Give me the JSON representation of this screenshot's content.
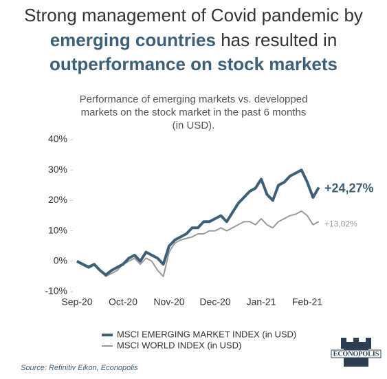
{
  "chart_data": {
    "type": "line",
    "title": [
      "Strong management of Covid pandemic by",
      "emerging countries",
      " has resulted in",
      "outperformance on stock markets"
    ],
    "subtitle": [
      "Performance of emerging markets vs. developped",
      "markets on the stock market in the past 6 months",
      "(in USD)."
    ],
    "categories": [
      "Sep-20",
      null,
      null,
      null,
      null,
      null,
      null,
      null,
      "Oct-20",
      null,
      null,
      null,
      null,
      null,
      null,
      null,
      "Nov-20",
      null,
      null,
      null,
      null,
      null,
      null,
      null,
      "Dec-20",
      null,
      null,
      null,
      null,
      null,
      null,
      null,
      "Jan-21",
      null,
      null,
      null,
      null,
      null,
      null,
      null,
      "Feb-21",
      null,
      null
    ],
    "series": [
      {
        "name": "MSCI EMERGING MARKET INDEX (in USD)",
        "color": "#3d6078",
        "values": [
          0,
          -1,
          -2,
          -1,
          -3,
          -4.5,
          -3,
          -2,
          -1,
          1,
          2,
          0,
          3,
          2,
          1,
          -1,
          5,
          7,
          8,
          9,
          11,
          11,
          13,
          13,
          14,
          15,
          13,
          16,
          19,
          21,
          23,
          24,
          27,
          22,
          20,
          25,
          26,
          28,
          29,
          30,
          26,
          21,
          24.27
        ],
        "value_labels": [
          null,
          null,
          null,
          null,
          null,
          null,
          null,
          null,
          null,
          null,
          null,
          null,
          null,
          null,
          null,
          null,
          null,
          null,
          null,
          null,
          null,
          null,
          null,
          null,
          null,
          null,
          null,
          null,
          null,
          null,
          null,
          null,
          null,
          null,
          null,
          null,
          null,
          null,
          null,
          null,
          null,
          null,
          "+24,27%"
        ]
      },
      {
        "name": "MSCI WORLD INDEX (in USD)",
        "color": "#999999",
        "values": [
          0,
          -1,
          -1.5,
          -1,
          -3,
          -5,
          -4,
          -3,
          -1,
          0,
          1,
          -1,
          1,
          0,
          -3,
          -5,
          3,
          6,
          7,
          7.5,
          8,
          9,
          9,
          10,
          10,
          11,
          10,
          11,
          12,
          13,
          13,
          12,
          14,
          12,
          11,
          13,
          14,
          15,
          15.5,
          16.5,
          15,
          12,
          13.02
        ],
        "value_labels": [
          null,
          null,
          null,
          null,
          null,
          null,
          null,
          null,
          null,
          null,
          null,
          null,
          null,
          null,
          null,
          null,
          null,
          null,
          null,
          null,
          null,
          null,
          null,
          null,
          null,
          null,
          null,
          null,
          null,
          null,
          null,
          null,
          null,
          null,
          null,
          null,
          null,
          null,
          null,
          null,
          null,
          null,
          "+13,02%"
        ]
      }
    ],
    "ylim": [
      -10,
      40
    ],
    "yticks": [
      {
        "value": -10,
        "label": "-10%"
      },
      {
        "value": 0,
        "label": "0%"
      },
      {
        "value": 10,
        "label": "10%"
      },
      {
        "value": 20,
        "label": "20%"
      },
      {
        "value": 30,
        "label": "30%"
      },
      {
        "value": 40,
        "label": "40%"
      }
    ],
    "source": "Source: Refinitiv Eikon, Econopolis",
    "logo": "ECONOPOLIS"
  }
}
